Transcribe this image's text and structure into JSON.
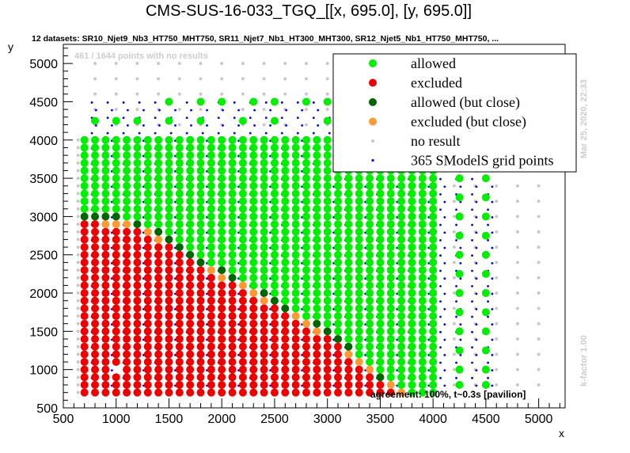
{
  "chart_data": {
    "type": "scatter",
    "title": "CMS-SUS-16-033_TGQ_[[x, 695.0], [y, 695.0]]",
    "subtitle": "12 datasets: SR10_Njet9_Nb3_HT750_MHT750, SR11_Njet7_Nb1_HT300_MHT300, SR12_Njet5_Nb1_HT750_MHT750,  ...",
    "xlabel": "x",
    "ylabel": "y",
    "xlim": [
      500,
      5250
    ],
    "ylim": [
      500,
      5250
    ],
    "x_ticks": [
      "500",
      "1000",
      "1500",
      "2000",
      "2500",
      "3000",
      "3500",
      "4000",
      "4500",
      "5000"
    ],
    "y_ticks": [
      "500",
      "1000",
      "1500",
      "2000",
      "2500",
      "3000",
      "3500",
      "4000",
      "4500",
      "5000"
    ],
    "legend_position": "top-right",
    "annotations": {
      "no_results": "461 / 1644 points with no results",
      "agreement": "agreement: 100%, t~0.3s [pavilion]",
      "date": "Mar 25, 2020, 22:33",
      "kfactor": "k-factor 1.00"
    },
    "series": [
      {
        "name": "allowed",
        "color": "#00ee00"
      },
      {
        "name": "excluded",
        "color": "#ee0000"
      },
      {
        "name": "allowed (but close)",
        "color": "#006400"
      },
      {
        "name": "excluded (but close)",
        "color": "#ff9933"
      },
      {
        "name": "no result",
        "color": "#c8c8c8"
      },
      {
        "name": "365 SModelS grid points",
        "color": "#0000ee"
      }
    ],
    "grid_spacing": 100,
    "dense_region": {
      "x_range": [
        700,
        4000
      ],
      "y_range": [
        700,
        4000
      ]
    },
    "boundary": [
      [
        700,
        3000
      ],
      [
        1100,
        2950
      ],
      [
        1500,
        2700
      ],
      [
        1800,
        2400
      ],
      [
        2100,
        2200
      ],
      [
        2500,
        1900
      ],
      [
        2800,
        1650
      ],
      [
        3100,
        1400
      ],
      [
        3300,
        1150
      ],
      [
        3500,
        900
      ],
      [
        3700,
        750
      ]
    ],
    "sparse_allowed": [
      [
        800,
        4250
      ],
      [
        1000,
        4250
      ],
      [
        1200,
        4250
      ],
      [
        1500,
        4250
      ],
      [
        1800,
        4250
      ],
      [
        2200,
        4250
      ],
      [
        2500,
        4250
      ],
      [
        3000,
        4250
      ],
      [
        3400,
        4250
      ],
      [
        1500,
        4500
      ],
      [
        1800,
        4500
      ],
      [
        2000,
        4500
      ],
      [
        2300,
        4500
      ],
      [
        2500,
        4500
      ],
      [
        2800,
        4500
      ],
      [
        3000,
        4500
      ],
      [
        3300,
        4500
      ],
      [
        3500,
        4500
      ],
      [
        4250,
        3750
      ],
      [
        4250,
        3500
      ],
      [
        4250,
        3250
      ],
      [
        4250,
        3000
      ],
      [
        4250,
        2750
      ],
      [
        4250,
        2500
      ],
      [
        4250,
        2250
      ],
      [
        4250,
        2000
      ],
      [
        4250,
        1750
      ],
      [
        4250,
        1500
      ],
      [
        4250,
        1250
      ],
      [
        4250,
        1000
      ],
      [
        4250,
        800
      ],
      [
        4500,
        3500
      ],
      [
        4500,
        3250
      ],
      [
        4500,
        3000
      ],
      [
        4500,
        2750
      ],
      [
        4500,
        2500
      ],
      [
        4500,
        2250
      ],
      [
        4500,
        2000
      ],
      [
        4500,
        1750
      ],
      [
        4500,
        1500
      ],
      [
        4500,
        1250
      ],
      [
        4500,
        1000
      ],
      [
        4500,
        800
      ]
    ]
  }
}
